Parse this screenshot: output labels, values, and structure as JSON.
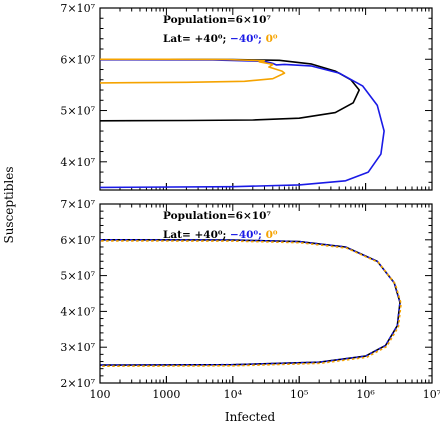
{
  "figure": {
    "xlabel": "Infected",
    "ylabel": "Susceptibles"
  },
  "chart_data": [
    {
      "type": "line",
      "panel": "top",
      "xscale": "log",
      "xlim": [
        100,
        10000000
      ],
      "ylim": [
        34500000,
        70000000
      ],
      "x_ticks": [
        {
          "value": 100,
          "label": "100"
        },
        {
          "value": 1000,
          "label": "1000"
        },
        {
          "value": 10000,
          "label": "10⁴"
        },
        {
          "value": 100000,
          "label": "10⁵"
        },
        {
          "value": 1000000,
          "label": "10⁶"
        },
        {
          "value": 10000000,
          "label": "10⁷"
        }
      ],
      "show_x_tick_labels": false,
      "y_ticks": [
        {
          "value": 40000000,
          "label": "4×10⁷"
        },
        {
          "value": 50000000,
          "label": "5×10⁷"
        },
        {
          "value": 60000000,
          "label": "6×10⁷"
        },
        {
          "value": 70000000,
          "label": "7×10⁷"
        }
      ],
      "annotations": [
        {
          "segments": [
            {
              "text": "Population=6×10⁷",
              "color": "#000000"
            }
          ]
        },
        {
          "segments": [
            {
              "text": "Lat= +40⁰;",
              "color": "#000000"
            },
            {
              "text": " −40⁰;",
              "color": "#1a1ae6"
            },
            {
              "text": " 0⁰",
              "color": "#f5a300"
            }
          ]
        }
      ],
      "series": [
        {
          "color": "#000000",
          "points": [
            [
              100,
              60000000
            ],
            [
              1000,
              60000000
            ],
            [
              10000,
              59950000
            ],
            [
              50000,
              59800000
            ],
            [
              150000,
              59100000
            ],
            [
              350000,
              57700000
            ],
            [
              600000,
              56000000
            ],
            [
              800000,
              54000000
            ],
            [
              650000,
              51500000
            ],
            [
              350000,
              49600000
            ],
            [
              100000,
              48500000
            ],
            [
              20000,
              48150000
            ],
            [
              2000,
              48050000
            ],
            [
              100,
              48000000
            ]
          ]
        },
        {
          "color": "#1a1ae6",
          "points": [
            [
              100,
              59900000
            ],
            [
              5000,
              59850000
            ],
            [
              30000,
              59600000
            ],
            [
              40000,
              59200000
            ],
            [
              45000,
              58900000
            ],
            [
              60000,
              59000000
            ],
            [
              150000,
              58700000
            ],
            [
              400000,
              57300000
            ],
            [
              900000,
              54800000
            ],
            [
              1500000,
              51000000
            ],
            [
              1900000,
              46000000
            ],
            [
              1700000,
              41500000
            ],
            [
              1100000,
              38000000
            ],
            [
              500000,
              36300000
            ],
            [
              100000,
              35500000
            ],
            [
              10000,
              35150000
            ],
            [
              100,
              35000000
            ]
          ]
        },
        {
          "color": "#f5a300",
          "points": [
            [
              100,
              60000000
            ],
            [
              1000,
              60000000
            ],
            [
              8000,
              59950000
            ],
            [
              30000,
              59700000
            ],
            [
              25000,
              59500000
            ],
            [
              40000,
              59000000
            ],
            [
              35000,
              58500000
            ],
            [
              55000,
              57700000
            ],
            [
              60000,
              57300000
            ],
            [
              40000,
              56200000
            ],
            [
              15000,
              55700000
            ],
            [
              2000,
              55500000
            ],
            [
              100,
              55400000
            ]
          ]
        }
      ]
    },
    {
      "type": "line",
      "panel": "bottom",
      "xscale": "log",
      "xlim": [
        100,
        10000000
      ],
      "ylim": [
        20000000,
        70000000
      ],
      "x_ticks": [
        {
          "value": 100,
          "label": "100"
        },
        {
          "value": 1000,
          "label": "1000"
        },
        {
          "value": 10000,
          "label": "10⁴"
        },
        {
          "value": 100000,
          "label": "10⁵"
        },
        {
          "value": 1000000,
          "label": "10⁶"
        },
        {
          "value": 10000000,
          "label": "10⁷"
        }
      ],
      "show_x_tick_labels": true,
      "y_ticks": [
        {
          "value": 20000000,
          "label": "2×10⁷"
        },
        {
          "value": 30000000,
          "label": "3×10⁷"
        },
        {
          "value": 40000000,
          "label": "4×10⁷"
        },
        {
          "value": 50000000,
          "label": "5×10⁷"
        },
        {
          "value": 60000000,
          "label": "6×10⁷"
        },
        {
          "value": 70000000,
          "label": "7×10⁷"
        }
      ],
      "annotations": [
        {
          "segments": [
            {
              "text": "Population=6×10⁷",
              "color": "#000000"
            }
          ]
        },
        {
          "segments": [
            {
              "text": "Lat= +40⁰;",
              "color": "#000000"
            },
            {
              "text": " −40⁰;",
              "color": "#1a1ae6"
            },
            {
              "text": " 0⁰",
              "color": "#f5a300"
            }
          ]
        }
      ],
      "series": [
        {
          "color": "#000000",
          "points": [
            [
              100,
              60000000
            ],
            [
              10000,
              59950000
            ],
            [
              100000,
              59500000
            ],
            [
              500000,
              58000000
            ],
            [
              1500000,
              54000000
            ],
            [
              2700000,
              48000000
            ],
            [
              3300000,
              42500000
            ],
            [
              3000000,
              36000000
            ],
            [
              2000000,
              30500000
            ],
            [
              1000000,
              27500000
            ],
            [
              200000,
              25800000
            ],
            [
              10000,
              25100000
            ],
            [
              100,
              25000000
            ]
          ]
        },
        {
          "color": "#1a1ae6",
          "dashed": true,
          "points": [
            [
              100,
              60000000
            ],
            [
              10000,
              59950000
            ],
            [
              100000,
              59500000
            ],
            [
              500000,
              58000000
            ],
            [
              1500000,
              54000000
            ],
            [
              2700000,
              48000000
            ],
            [
              3300000,
              42500000
            ],
            [
              3000000,
              36000000
            ],
            [
              2000000,
              30500000
            ],
            [
              1000000,
              27500000
            ],
            [
              200000,
              25800000
            ],
            [
              10000,
              25100000
            ],
            [
              100,
              25000000
            ]
          ]
        },
        {
          "color": "#f5a300",
          "dashed": true,
          "offset": true,
          "points": [
            [
              100,
              60000000
            ],
            [
              10000,
              59950000
            ],
            [
              100000,
              59500000
            ],
            [
              500000,
              58000000
            ],
            [
              1500000,
              54000000
            ],
            [
              2700000,
              48000000
            ],
            [
              3300000,
              42500000
            ],
            [
              3000000,
              36000000
            ],
            [
              2000000,
              30500000
            ],
            [
              1000000,
              27500000
            ],
            [
              200000,
              25800000
            ],
            [
              10000,
              25100000
            ],
            [
              100,
              25000000
            ]
          ]
        }
      ]
    }
  ]
}
